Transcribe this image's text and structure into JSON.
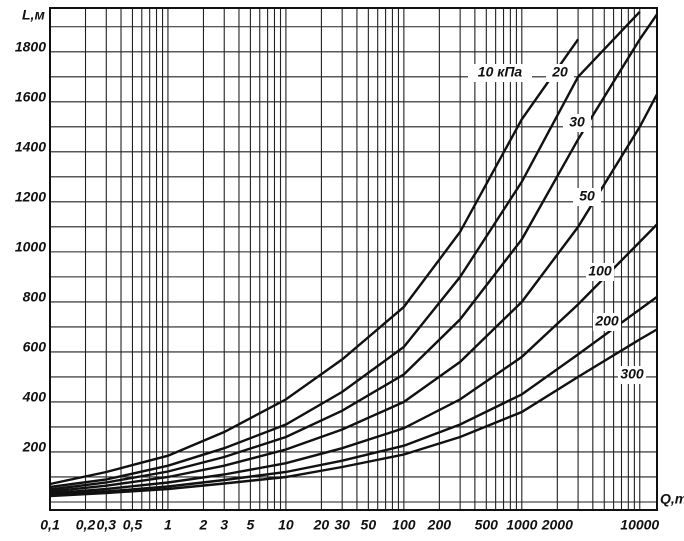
{
  "chart_data": {
    "type": "line",
    "x_label": "Q,т",
    "y_label": "L,м",
    "x_log": true,
    "grid": true,
    "xlim": [
      0.1,
      14000
    ],
    "ylim": [
      0,
      1975
    ],
    "xticks": [
      {
        "value": 0.1,
        "label": "0,1"
      },
      {
        "value": 0.2,
        "label": "0,2"
      },
      {
        "value": 0.3,
        "label": "0,3"
      },
      {
        "value": 0.5,
        "label": "0,5"
      },
      1,
      2,
      3,
      5,
      10,
      20,
      30,
      50,
      100,
      200,
      500,
      1000,
      2000,
      10000
    ],
    "yticks": [
      200,
      400,
      600,
      800,
      1000,
      1200,
      1400,
      1600,
      1800
    ],
    "xgrid": [
      0.1,
      0.2,
      0.3,
      0.4,
      0.5,
      0.6,
      0.7,
      0.8,
      0.9,
      1,
      2,
      3,
      4,
      5,
      6,
      7,
      8,
      9,
      10,
      20,
      30,
      40,
      50,
      60,
      70,
      80,
      90,
      100,
      200,
      300,
      400,
      500,
      600,
      700,
      800,
      900,
      1000,
      2000,
      3000,
      4000,
      5000,
      6000,
      7000,
      8000,
      9000,
      10000
    ],
    "ygrid": [
      0,
      100,
      200,
      300,
      400,
      500,
      600,
      700,
      800,
      900,
      1000,
      1100,
      1200,
      1300,
      1400,
      1500,
      1600,
      1700,
      1800,
      1900
    ],
    "x": [
      0.1,
      0.3,
      1,
      3,
      10,
      30,
      100,
      300,
      1000,
      3000,
      10000,
      14000
    ],
    "series": [
      {
        "name": "10 кПа",
        "color": "#111111",
        "values": [
          72,
          120,
          185,
          280,
          410,
          570,
          780,
          1080,
          1530,
          1850,
          null,
          null
        ]
      },
      {
        "name": "20",
        "color": "#111111",
        "values": [
          60,
          90,
          145,
          215,
          310,
          440,
          620,
          900,
          1280,
          1700,
          1960,
          null
        ]
      },
      {
        "name": "30",
        "color": "#111111",
        "values": [
          50,
          78,
          122,
          180,
          260,
          365,
          510,
          730,
          1050,
          1450,
          1850,
          1950
        ]
      },
      {
        "name": "50",
        "color": "#111111",
        "values": [
          42,
          65,
          100,
          145,
          210,
          290,
          400,
          560,
          800,
          1100,
          1500,
          1630
        ]
      },
      {
        "name": "100",
        "color": "#111111",
        "values": [
          34,
          52,
          78,
          110,
          155,
          215,
          295,
          410,
          580,
          790,
          1040,
          1110
        ]
      },
      {
        "name": "200",
        "color": "#111111",
        "values": [
          28,
          42,
          62,
          88,
          120,
          165,
          225,
          310,
          430,
          590,
          770,
          820
        ]
      },
      {
        "name": "300",
        "color": "#111111",
        "values": [
          24,
          36,
          52,
          74,
          100,
          140,
          190,
          260,
          360,
          500,
          650,
          690
        ]
      }
    ]
  }
}
